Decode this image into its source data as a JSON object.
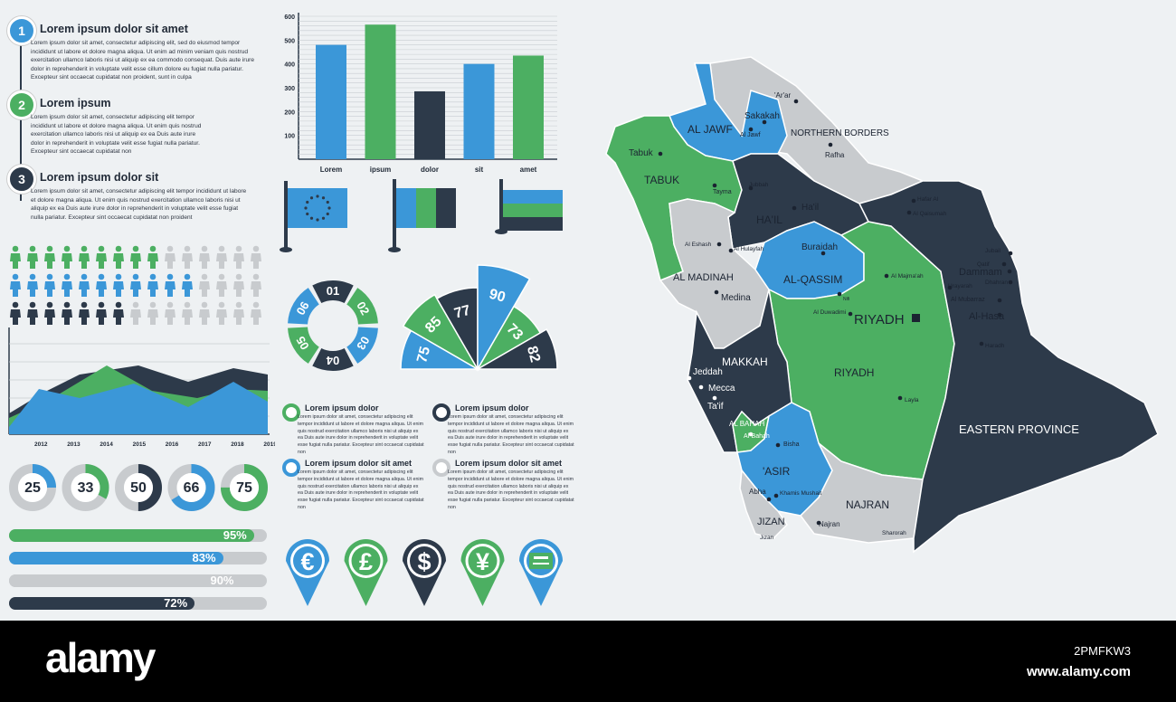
{
  "steps": [
    {
      "n": "1",
      "title": "Lorem ipsum dolor sit amet",
      "body": "Lorem ipsum dolor sit amet, consectetur adipiscing elit, sed do eiusmod tempor incididunt ut labore et dolore magna aliqua. Ut enim ad minim veniam quis nostrud exercitation ullamco laboris nisi ut aliquip ex ea commodo consequat. Duis aute irure dolor in reprehenderit in voluptate velit esse cillum dolore eu fugiat nulla pariatur. Excepteur sint occaecat cupidatat non proident, sunt in culpa",
      "color": "#3b97d8"
    },
    {
      "n": "2",
      "title": "Lorem ipsum",
      "body": "Lorem ipsum dolor sit amet, consectetur adipiscing elit tempor incididunt ut labore et dolore magna aliqua. Ut enim quis nostrud exercitation ullamco laboris nisi ut aliquip ex ea Duis aute irure dolor in reprehenderit in voluptate velit esse fugiat nulla pariatur. Excepteur sint occaecat cupidatat non",
      "color": "#4caf62"
    },
    {
      "n": "3",
      "title": "Lorem ipsum dolor sit",
      "body": "Lorem ipsum dolor sit amet, consectetur adipiscing elit tempor incididunt ut labore et dolore magna aliqua. Ut enim quis nostrud exercitation ullamco laboris nisi ut aliquip ex ea Duis aute irure dolor in reprehenderit in voluptate velit esse fugiat nulla pariatur. Excepteur sint occaecat cupidatat non proident",
      "color": "#2d3a4a"
    }
  ],
  "people_rows": [
    {
      "color": "#4caf62",
      "filled": 9,
      "total": 15
    },
    {
      "color": "#3b97d8",
      "filled": 11,
      "total": 15
    },
    {
      "color": "#2d3a4a",
      "filled": 7,
      "total": 15
    }
  ],
  "area_chart": {
    "years": [
      "2012",
      "2013",
      "2014",
      "2015",
      "2016",
      "2017",
      "2018",
      "2019"
    ]
  },
  "donuts": [
    {
      "label": "25",
      "value": 25,
      "color": "#3b97d8"
    },
    {
      "label": "33",
      "value": 33,
      "color": "#4caf62"
    },
    {
      "label": "50",
      "value": 50,
      "color": "#2d3a4a"
    },
    {
      "label": "66",
      "value": 66,
      "color": "#3b97d8"
    },
    {
      "label": "75",
      "value": 75,
      "color": "#4caf62"
    }
  ],
  "progress": [
    {
      "label": "95%",
      "value": 95,
      "color": "#4caf62"
    },
    {
      "label": "83%",
      "value": 83,
      "color": "#3b97d8"
    },
    {
      "label": "90%",
      "value": 90,
      "color": "#c8cbce"
    },
    {
      "label": "72%",
      "value": 72,
      "color": "#2d3a4a"
    }
  ],
  "chart_data": {
    "type": "bar",
    "categories": [
      "Lorem",
      "ipsum",
      "dolor",
      "sit",
      "amet"
    ],
    "values": [
      480,
      565,
      285,
      400,
      435
    ],
    "colors": [
      "#3b97d8",
      "#4caf62",
      "#2d3a4a",
      "#3b97d8",
      "#4caf62"
    ],
    "yticks": [
      "100",
      "200",
      "300",
      "400",
      "500",
      "600"
    ],
    "ylim": [
      0,
      600
    ],
    "grid": true
  },
  "ring": {
    "segments": [
      "01",
      "02",
      "03",
      "04",
      "05",
      "06"
    ]
  },
  "fan": {
    "values": [
      "75",
      "85",
      "77",
      "90",
      "73",
      "82"
    ]
  },
  "legend": [
    {
      "title": "Lorem ipsum dolor",
      "body": "Lorem ipsum dolor sit amet, consectetur adipiscing elit tempor incididunt ut labore et dolore magna aliqua. Ut enim quis nostrud exercitation ullamco laboris nisi ut aliquip ex ea Duis aute irure dolor in reprehenderit in voluptate velit esse fugiat nulla pariatur. Excepteur sint occaecat cupidatat non",
      "color": "#4caf62"
    },
    {
      "title": "Lorem ipsum dolor",
      "body": "Lorem ipsum dolor sit amet, consectetur adipiscing elit tempor incididunt ut labore et dolore magna aliqua. Ut enim quis nostrud exercitation ullamco laboris nisi ut aliquip ex ea Duis aute irure dolor in reprehenderit in voluptate velit esse fugiat nulla pariatur. Excepteur sint occaecat cupidatat non",
      "color": "#2d3a4a"
    },
    {
      "title": "Lorem ipsum dolor sit amet",
      "body": "Lorem ipsum dolor sit amet, consectetur adipiscing elit tempor incididunt ut labore et dolore magna aliqua. Ut enim quis nostrud exercitation ullamco laboris nisi ut aliquip ex ea Duis aute irure dolor in reprehenderit in voluptate velit esse fugiat nulla pariatur. Excepteur sint occaecat cupidatat non",
      "color": "#3b97d8"
    },
    {
      "title": "Lorem ipsum dolor sit amet",
      "body": "Lorem ipsum dolor sit amet, consectetur adipiscing elit tempor incididunt ut labore et dolore magna aliqua. Ut enim quis nostrud exercitation ullamco laboris nisi ut aliquip ex ea Duis aute irure dolor in reprehenderit in voluptate velit esse fugiat nulla pariatur. Excepteur sint occaecat cupidatat non",
      "color": "#c8cbce"
    }
  ],
  "pins": [
    {
      "symbol": "€",
      "color": "#3b97d8",
      "icon": "euro-pin-icon"
    },
    {
      "symbol": "£",
      "color": "#4caf62",
      "icon": "pound-pin-icon"
    },
    {
      "symbol": "$",
      "color": "#2d3a4a",
      "icon": "dollar-pin-icon"
    },
    {
      "symbol": "¥",
      "color": "#4caf62",
      "icon": "yen-pin-icon"
    },
    {
      "symbol": "",
      "color": "#3b97d8",
      "icon": "saudi-flag-pin-icon"
    }
  ],
  "map": {
    "regions": [
      "AL JAWF",
      "NORTHERN BORDERS",
      "TABUK",
      "HA'IL",
      "AL-QASSIM",
      "AL MADINAH",
      "RIYADH",
      "MAKKAH",
      "AL BAHAH",
      "'ASIR",
      "JIZAN",
      "NAJRAN",
      "EASTERN PROVINCE"
    ],
    "cities": [
      "'Ar'ar",
      "Sakakah",
      "Al Jawf",
      "Rafha",
      "Tabuk",
      "Tayma",
      "Jubbah",
      "Ha'il",
      "Hafar Al",
      "Al Qaisumah",
      "Al Eshash",
      "Al Hulayfah",
      "Buraidah",
      "Al Majma'ah",
      "Medina",
      "Nifi",
      "Al Duwadimi",
      "RIYADH",
      "Jubail",
      "Dammam",
      "Qatif",
      "Urayarah",
      "Dhahran",
      "Al Mubarraz",
      "Al-Hasa",
      "Haradh",
      "Jeddah",
      "Mecca",
      "Ta'if",
      "Layla",
      "Al-Bahah",
      "Bisha",
      "Abha",
      "Khamis Mushait",
      "Najran",
      "Jizan",
      "Sharorah"
    ]
  },
  "watermark": {
    "brand": "alamy",
    "code": "2PMFKW3",
    "url": "www.alamy.com"
  },
  "colors": {
    "blue": "#3b97d8",
    "green": "#4caf62",
    "navy": "#2d3a4a",
    "gray": "#c8cbce",
    "bg": "#eef1f3"
  }
}
